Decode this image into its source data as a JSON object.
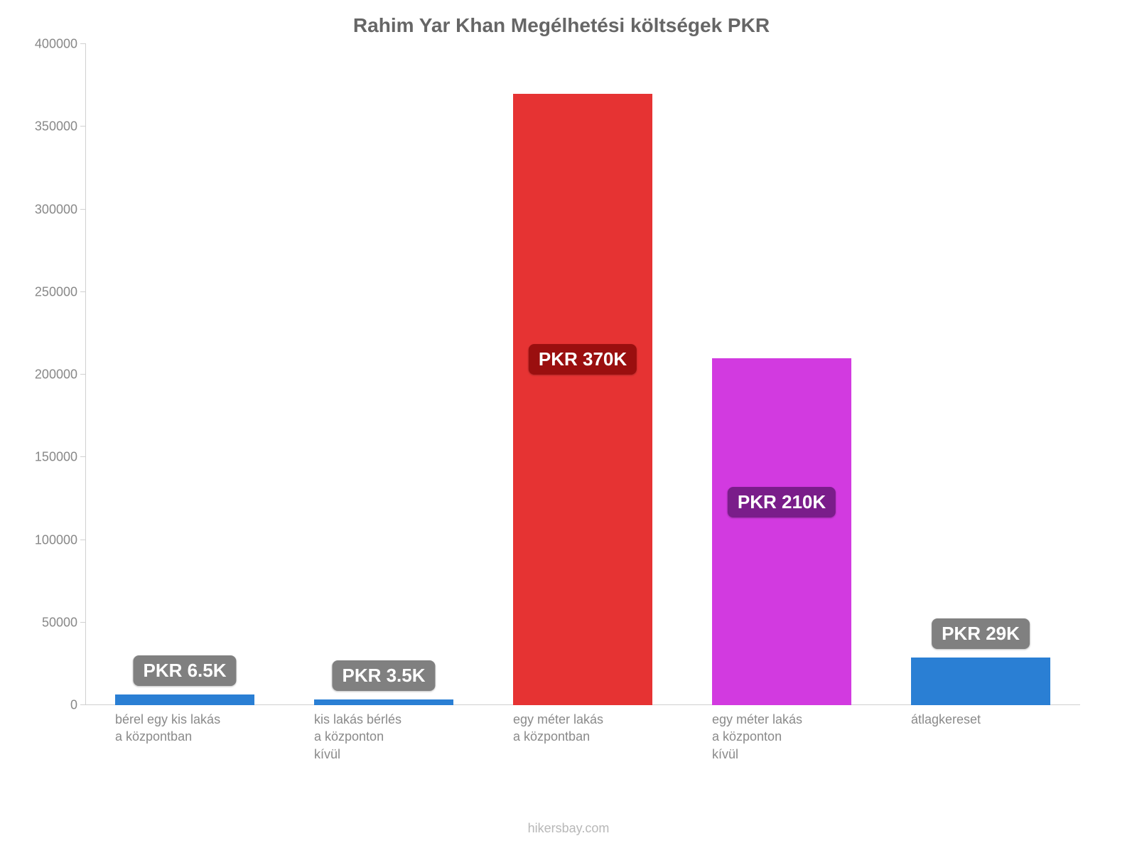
{
  "chart": {
    "type": "bar",
    "title": "Rahim Yar Khan Megélhetési költségek PKR",
    "title_fontsize": 28,
    "title_color": "#666666",
    "background_color": "#ffffff",
    "axis_color": "#d0d0d0",
    "tick_label_color": "#888888",
    "tick_label_fontsize": 18,
    "x_label_color": "#8a8a8a",
    "x_label_fontsize": 18,
    "ylim": [
      0,
      400000
    ],
    "ytick_step": 50000,
    "yticks": [
      0,
      50000,
      100000,
      150000,
      200000,
      250000,
      300000,
      350000,
      400000
    ],
    "bar_width": 0.7,
    "categories": [
      [
        "bérel egy kis lakás",
        "a központban"
      ],
      [
        "kis lakás bérlés",
        "a központon",
        "kívül"
      ],
      [
        "egy méter lakás",
        "a központban"
      ],
      [
        "egy méter lakás",
        "a központon",
        "kívül"
      ],
      [
        "átlagkereset"
      ]
    ],
    "values": [
      6500,
      3500,
      370000,
      210000,
      29000
    ],
    "bar_colors": [
      "#2a7fd4",
      "#2a7fd4",
      "#e63333",
      "#d23ae0",
      "#2a7fd4"
    ],
    "value_labels": [
      "PKR 6.5K",
      "PKR 3.5K",
      "PKR 370K",
      "PKR 210K",
      "PKR 29K"
    ],
    "badge_bg_colors": [
      "#808080",
      "#808080",
      "#9a0f0f",
      "#7a1d8a",
      "#808080"
    ],
    "badge_text_color": "#ffffff",
    "badge_fontsize": 26,
    "credit": "hikersbay.com",
    "credit_color": "#b8b8b8"
  }
}
